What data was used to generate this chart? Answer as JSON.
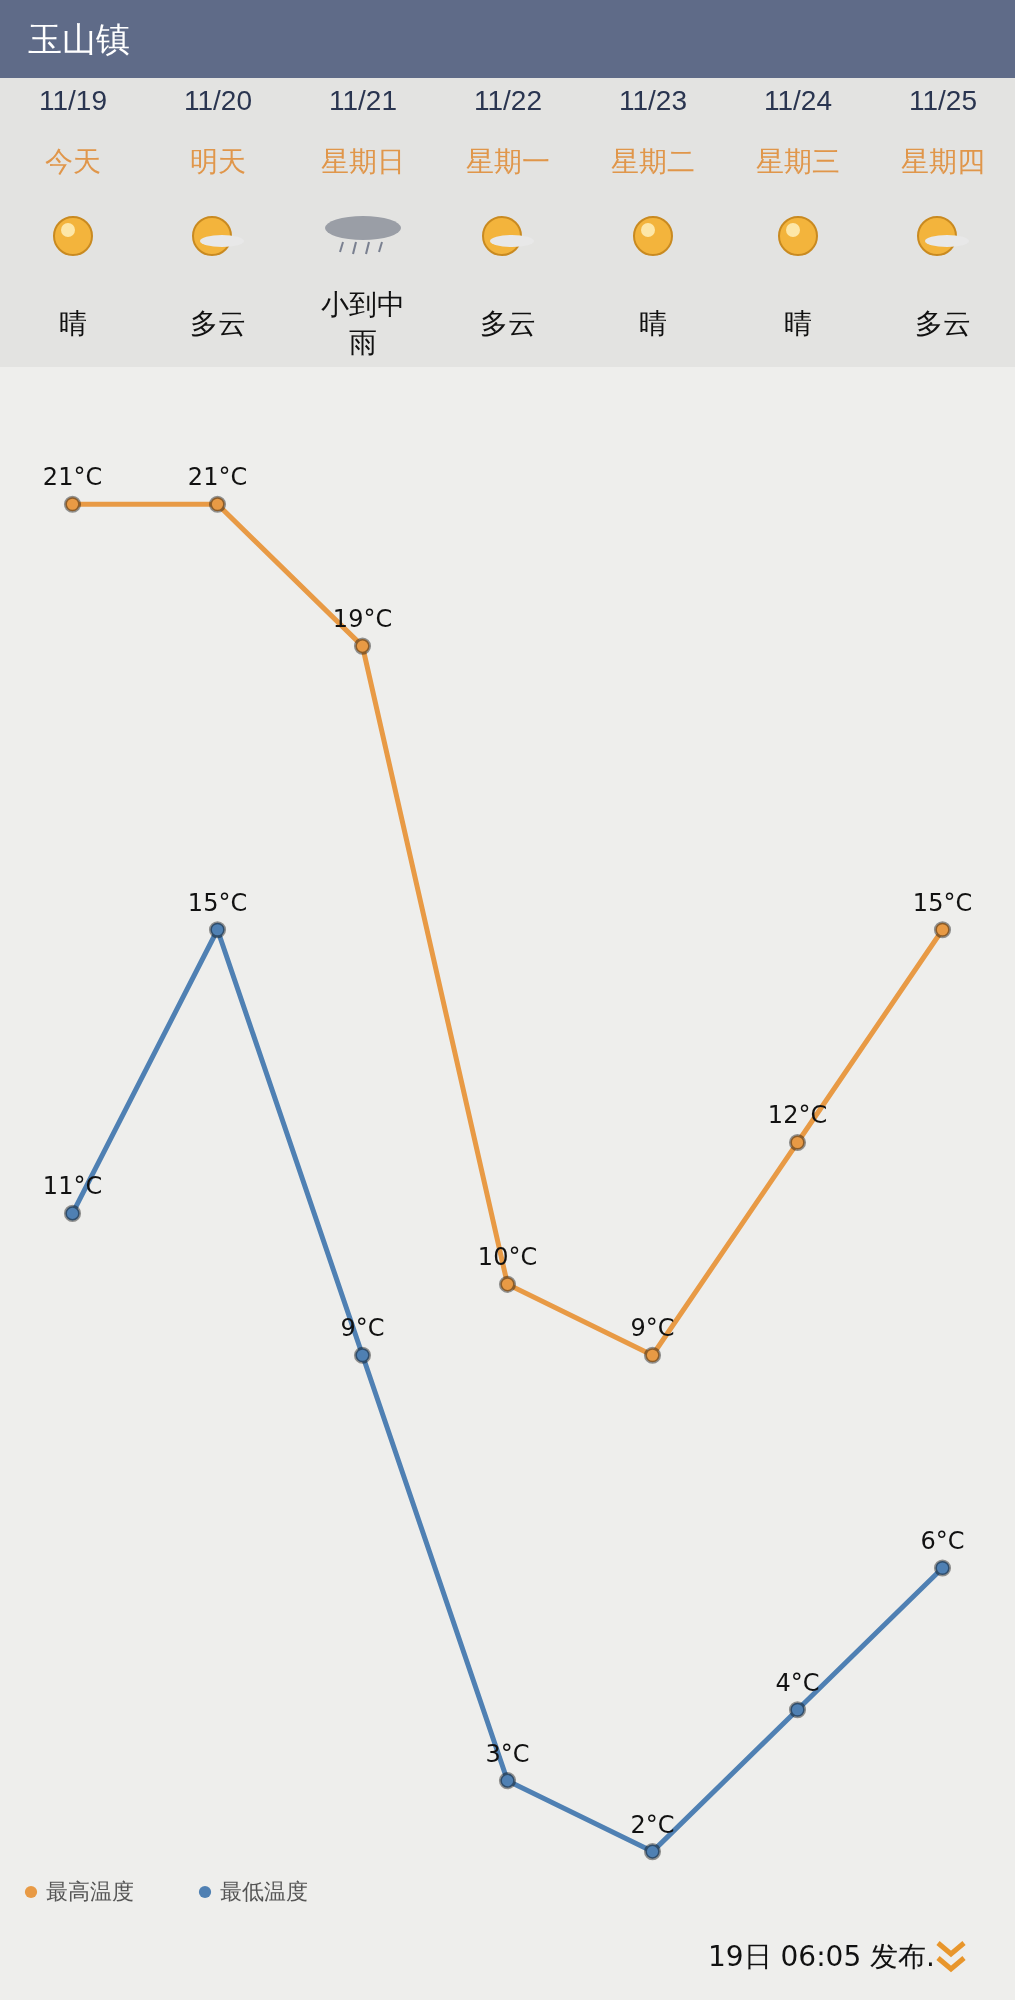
{
  "chart_data": {
    "type": "line",
    "title": "玉山镇",
    "categories": [
      "11/19",
      "11/20",
      "11/21",
      "11/22",
      "11/23",
      "11/24",
      "11/25"
    ],
    "series": [
      {
        "name": "最高温度",
        "color": "#e89a45",
        "values": [
          21,
          21,
          19,
          10,
          9,
          12,
          15
        ],
        "value_labels": [
          "21°C",
          "21°C",
          "19°C",
          "10°C",
          "9°C",
          "12°C",
          "15°C"
        ]
      },
      {
        "name": "最低温度",
        "color": "#4f80b3",
        "values": [
          11,
          15,
          9,
          3,
          2,
          4,
          6
        ],
        "value_labels": [
          "11°C",
          "15°C",
          "9°C",
          "3°C",
          "2°C",
          "4°C",
          "6°C"
        ]
      }
    ],
    "tick_labels": "x",
    "marker": "circle",
    "line_style": "solid",
    "legend": "bottom left",
    "annotations": [
      "今天",
      "晴",
      "明天",
      "多云",
      "星期日",
      "小到中雨",
      "星期一",
      "多云",
      "星期二",
      "晴",
      "星期三",
      "晴",
      "星期四",
      "多云",
      "19日 06:05 发布."
    ]
  }
}
